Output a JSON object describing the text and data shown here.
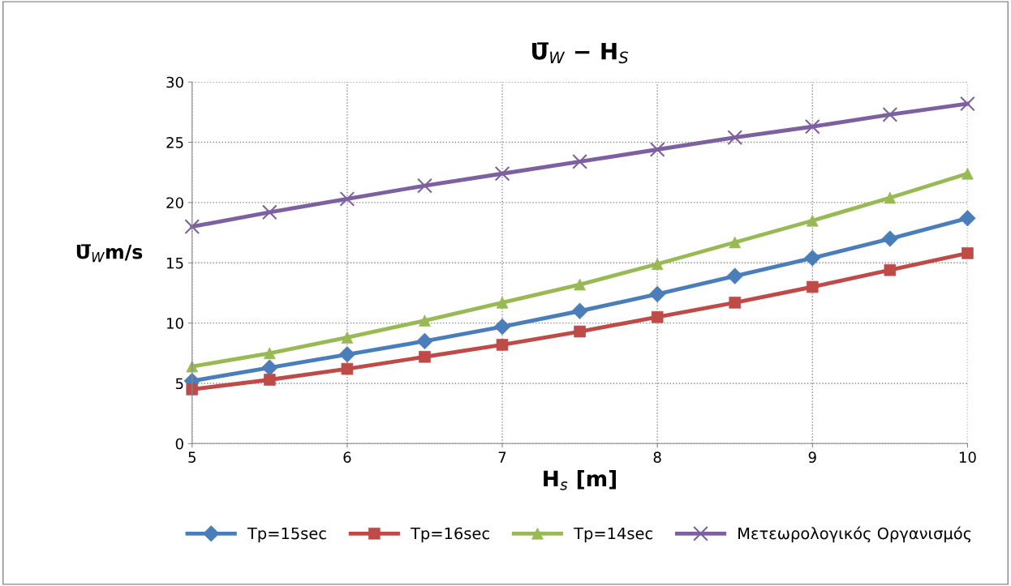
{
  "chart_data": {
    "type": "line",
    "title": "U̅$_{W}$ − H$_{S}$",
    "xlabel": "H$_{s}$ [m]",
    "ylabel": "U̅$_{W}$m/s",
    "x": [
      5,
      5.5,
      6,
      6.5,
      7,
      7.5,
      8,
      8.5,
      9,
      9.5,
      10
    ],
    "series": [
      {
        "name": "Tp=15sec",
        "color": "#4a7ebb",
        "marker": "diamond",
        "values": [
          5.2,
          6.3,
          7.4,
          8.5,
          9.7,
          11.0,
          12.4,
          13.9,
          15.4,
          17.0,
          18.7
        ]
      },
      {
        "name": "Tp=16sec",
        "color": "#be4b48",
        "marker": "square",
        "values": [
          4.5,
          5.3,
          6.2,
          7.2,
          8.2,
          9.3,
          10.5,
          11.7,
          13.0,
          14.4,
          15.8
        ]
      },
      {
        "name": "Tp=14sec",
        "color": "#98b954",
        "marker": "triangle",
        "values": [
          6.4,
          7.5,
          8.8,
          10.2,
          11.7,
          13.2,
          14.9,
          16.7,
          18.5,
          20.4,
          22.4
        ]
      },
      {
        "name": "Μετεωρολογικός Οργανισμός",
        "color": "#7d60a0",
        "marker": "cross",
        "values": [
          18.0,
          19.2,
          20.3,
          21.4,
          22.4,
          23.4,
          24.4,
          25.4,
          26.3,
          27.3,
          28.2
        ]
      }
    ],
    "xlim": [
      5,
      10
    ],
    "xticks": [
      5,
      6,
      7,
      8,
      9,
      10
    ],
    "ylim": [
      0,
      30
    ],
    "yticks": [
      0,
      5,
      10,
      15,
      20,
      25,
      30
    ],
    "grid": true,
    "legend": "bottom",
    "line_style": "solid"
  }
}
